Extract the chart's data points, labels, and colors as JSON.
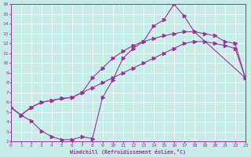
{
  "xlabel": "Windchill (Refroidissement éolien,°C)",
  "xlim": [
    0,
    23
  ],
  "ylim": [
    2,
    16
  ],
  "xticks": [
    0,
    1,
    2,
    3,
    4,
    5,
    6,
    7,
    8,
    9,
    10,
    11,
    12,
    13,
    14,
    15,
    16,
    17,
    18,
    19,
    20,
    21,
    22,
    23
  ],
  "yticks": [
    2,
    3,
    4,
    5,
    6,
    7,
    8,
    9,
    10,
    11,
    12,
    13,
    14,
    15,
    16
  ],
  "bg_color": "#c8ece8",
  "line_color": "#993399",
  "grid_color": "#ffffff",
  "curve1_x": [
    0,
    1,
    2,
    3,
    4,
    5,
    6,
    7,
    8,
    9,
    10,
    11,
    12,
    13,
    14,
    15,
    16,
    17,
    18,
    23
  ],
  "curve1_y": [
    5.5,
    4.7,
    4.1,
    3.1,
    2.5,
    2.2,
    2.2,
    2.5,
    2.3,
    6.5,
    8.3,
    10.5,
    11.5,
    12.2,
    13.8,
    14.4,
    16.0,
    14.8,
    13.2,
    8.5
  ],
  "curve2_x": [
    0,
    1,
    2,
    3,
    4,
    5,
    6,
    7,
    8,
    9,
    10,
    11,
    12,
    13,
    14,
    15,
    16,
    17,
    18,
    19,
    20,
    21,
    22,
    23
  ],
  "curve2_y": [
    5.5,
    4.7,
    5.5,
    6.0,
    6.2,
    6.4,
    6.5,
    7.0,
    7.5,
    8.0,
    8.5,
    9.0,
    9.5,
    10.0,
    10.5,
    11.0,
    11.5,
    12.0,
    12.2,
    12.2,
    12.0,
    11.8,
    11.5,
    8.5
  ],
  "curve3_x": [
    0,
    1,
    2,
    3,
    4,
    5,
    6,
    7,
    8,
    9,
    10,
    11,
    12,
    13,
    14,
    15,
    16,
    17,
    18,
    19,
    20,
    21,
    22,
    23
  ],
  "curve3_y": [
    5.5,
    4.7,
    5.5,
    6.0,
    6.2,
    6.4,
    6.5,
    7.0,
    8.5,
    9.5,
    10.5,
    11.2,
    11.8,
    12.2,
    12.5,
    12.8,
    13.0,
    13.2,
    13.2,
    13.0,
    12.8,
    12.2,
    12.0,
    8.5
  ]
}
